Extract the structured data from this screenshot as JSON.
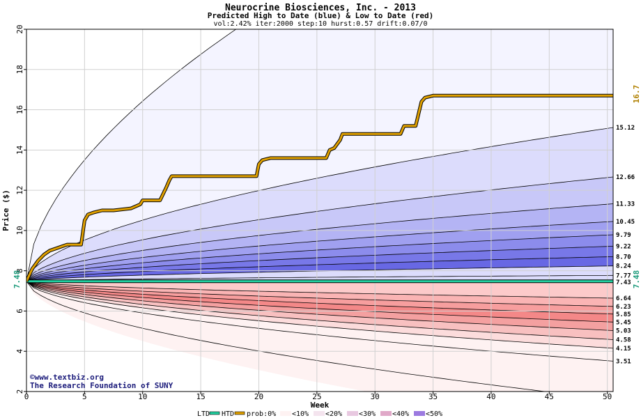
{
  "chart_data": {
    "type": "area",
    "title": "Neurocrine Biosciences, Inc. - 2013",
    "subtitle": "Predicted High to Date (blue) &  Low to Date (red)",
    "params": "vol:2.42% iter:2000 step:10 hurst:0.57 drift:0.07/0",
    "xlabel": "Week",
    "ylabel": "Price ($)",
    "xlim": [
      0,
      50.5
    ],
    "ylim": [
      2,
      20
    ],
    "xticks": [
      0,
      5,
      10,
      15,
      20,
      25,
      30,
      35,
      40,
      45,
      50
    ],
    "yticks": [
      2,
      4,
      6,
      8,
      10,
      12,
      14,
      16,
      18,
      20
    ],
    "start_price": 7.48,
    "start_label": "7.48",
    "grid": true,
    "high_curves_end": [
      {
        "value": 20,
        "label": ""
      },
      {
        "value": 15.12,
        "label": "15.12"
      },
      {
        "value": 12.66,
        "label": "12.66"
      },
      {
        "value": 11.33,
        "label": "11.33"
      },
      {
        "value": 10.45,
        "label": "10.45"
      },
      {
        "value": 9.79,
        "label": "9.79"
      },
      {
        "value": 9.22,
        "label": "9.22"
      },
      {
        "value": 8.7,
        "label": "8.70"
      },
      {
        "value": 8.24,
        "label": "8.24"
      },
      {
        "value": 7.77,
        "label": "7.77"
      }
    ],
    "low_curves_end": [
      {
        "value": 7.43,
        "label": "7.43"
      },
      {
        "value": 6.64,
        "label": "6.64"
      },
      {
        "value": 6.23,
        "label": "6.23"
      },
      {
        "value": 5.85,
        "label": "5.85"
      },
      {
        "value": 5.45,
        "label": "5.45"
      },
      {
        "value": 5.03,
        "label": "5.03"
      },
      {
        "value": 4.58,
        "label": "4.58"
      },
      {
        "value": 4.15,
        "label": "4.15"
      },
      {
        "value": 3.51,
        "label": "3.51"
      },
      {
        "value": 1.6,
        "label": ""
      }
    ],
    "high_fills": [
      "#f4f4ff",
      "#dcdcfc",
      "#c8c8f8",
      "#b4b4f4",
      "#a0a0f0",
      "#8c8cec",
      "#7878e8",
      "#6868e4",
      "#dcdcfc"
    ],
    "low_fills": [
      "#fde0e0",
      "#fccaca",
      "#fab4b4",
      "#f79e9e",
      "#f48888",
      "#f4a0a0",
      "#f8c0c0",
      "#fcdcdc",
      "#fef2f2"
    ],
    "htd_series": {
      "name": "HTD",
      "x": [
        0,
        0.5,
        1,
        1.5,
        2,
        2.5,
        3,
        3.5,
        4,
        4.7,
        5,
        5.3,
        5.8,
        6.5,
        7.5,
        9,
        9.8,
        10,
        11.5,
        12,
        12.3,
        12.5,
        15,
        18,
        19.8,
        20,
        20.3,
        21,
        24,
        25.8,
        26.1,
        26.5,
        27,
        27.2,
        30,
        32.2,
        32.5,
        33.5,
        34,
        34.3,
        35,
        50.5
      ],
      "y": [
        7.48,
        8.1,
        8.5,
        8.8,
        9.0,
        9.1,
        9.2,
        9.3,
        9.3,
        9.3,
        10.5,
        10.8,
        10.9,
        11.0,
        11.0,
        11.1,
        11.3,
        11.5,
        11.5,
        12.1,
        12.5,
        12.7,
        12.7,
        12.7,
        12.7,
        13.3,
        13.5,
        13.6,
        13.6,
        13.6,
        14.0,
        14.1,
        14.5,
        14.8,
        14.8,
        14.8,
        15.2,
        15.2,
        16.4,
        16.6,
        16.7,
        16.7
      ]
    },
    "htd_end_label": "16.7",
    "ltd_series": {
      "name": "LTD",
      "value": 7.48
    },
    "legend": {
      "ltd": "LTD",
      "htd": "HTD",
      "prob": "prob:0%",
      "p10": "<10%",
      "p20": "<20%",
      "p30": "<30%",
      "p40": "<40%",
      "p50": "<50%"
    },
    "credit1": "©www.textbiz.org",
    "credit2": "The Research Foundation of SUNY",
    "colors": {
      "htd": "#e0a000",
      "ltd": "#20d0a0",
      "htd_label": "#b08000",
      "ltd_label": "#1a9a7a",
      "credit": "#1a1a7a"
    }
  }
}
